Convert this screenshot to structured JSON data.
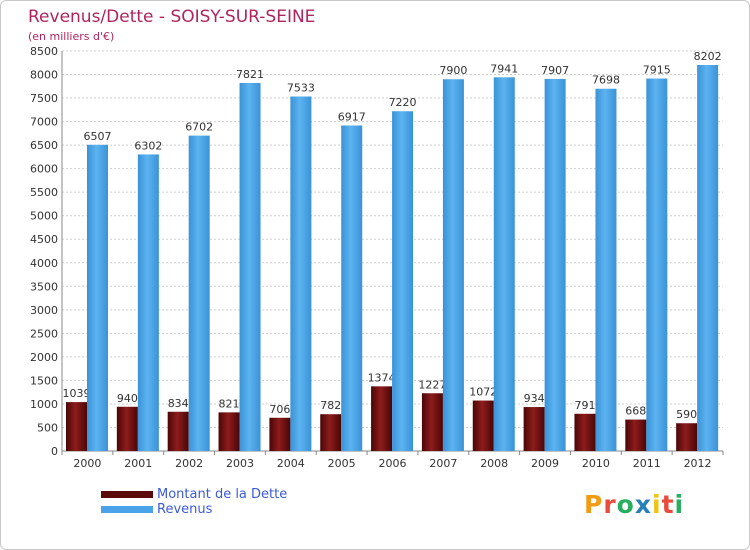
{
  "header": {
    "title": "Revenus/Dette - SOISY-SUR-SEINE",
    "subtitle": "(en milliers d'€)"
  },
  "logo": {
    "text": "Proxiti",
    "colors": [
      "#f39c12",
      "#e74c3c",
      "#27ae60",
      "#2980b9",
      "#f1c40f",
      "#e74c3c",
      "#27ae60"
    ]
  },
  "chart_data": {
    "type": "bar",
    "title": "Revenus/Dette - SOISY-SUR-SEINE",
    "subtitle": "(en milliers d'€)",
    "categories": [
      "2000",
      "2001",
      "2002",
      "2003",
      "2004",
      "2005",
      "2006",
      "2007",
      "2008",
      "2009",
      "2010",
      "2011",
      "2012"
    ],
    "series": [
      {
        "name": "Montant de la Dette",
        "color": "#7a0f0f",
        "values": [
          1039,
          940,
          834,
          821,
          706,
          782,
          1374,
          1227,
          1072,
          934,
          791,
          668,
          590
        ],
        "labels": [
          "1039",
          "940",
          "834",
          "821",
          "706",
          "782",
          "1374",
          "1227",
          "1072",
          "934",
          "791",
          "668",
          "590"
        ]
      },
      {
        "name": "Revenus",
        "color": "#4aa3e8",
        "values": [
          6507,
          6302,
          6702,
          7821,
          7533,
          6917,
          7220,
          7900,
          7941,
          7907,
          7698,
          7915,
          8202
        ],
        "labels": [
          "6507",
          "6302",
          "6702",
          "7821",
          "7533",
          "6917",
          "7220",
          "7900",
          "7941",
          "7907",
          "7698",
          "7915",
          "8202"
        ]
      }
    ],
    "ylim": [
      0,
      8500
    ],
    "ytick_step": 500,
    "yticks": [
      "0",
      "500",
      "1000",
      "1500",
      "2000",
      "2500",
      "3000",
      "3500",
      "4000",
      "4500",
      "5000",
      "5500",
      "6000",
      "6500",
      "7000",
      "7500",
      "8000",
      "8500"
    ],
    "grid": true,
    "legend": "bottom-left"
  }
}
